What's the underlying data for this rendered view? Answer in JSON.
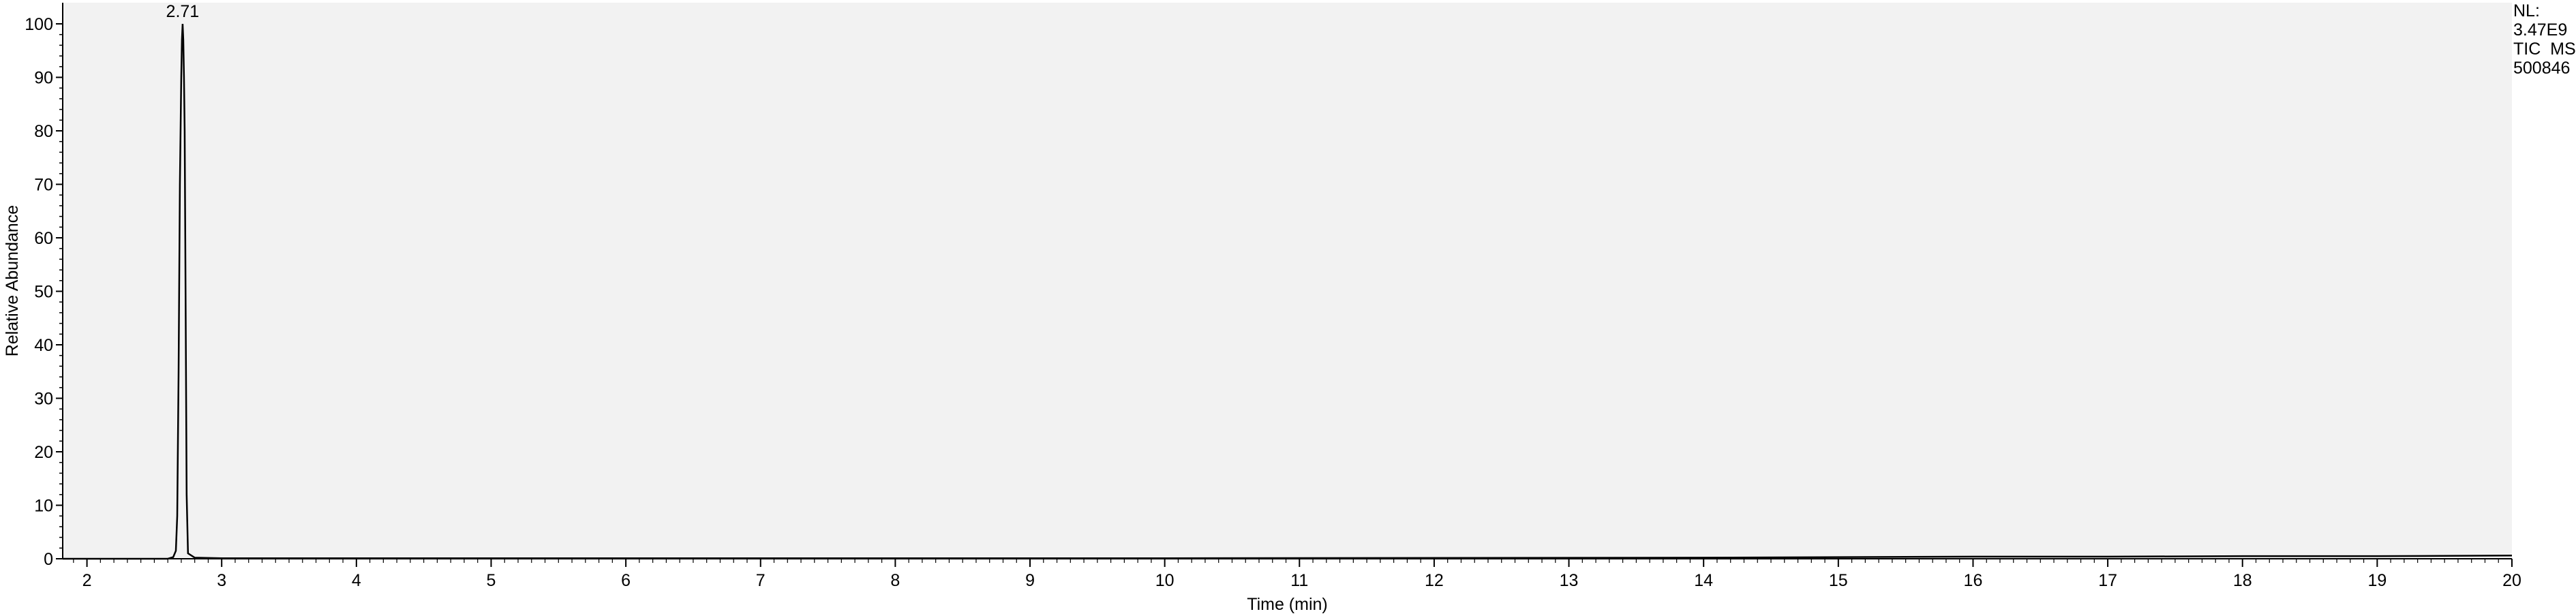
{
  "chart_data": {
    "type": "line",
    "title": "",
    "xlabel": "Time (min)",
    "ylabel": "Relative Abundance",
    "xlim": [
      1.82,
      20.0
    ],
    "ylim": [
      0,
      100
    ],
    "x_ticks": [
      2,
      3,
      4,
      5,
      6,
      7,
      8,
      9,
      10,
      11,
      12,
      13,
      14,
      15,
      16,
      17,
      18,
      19,
      20
    ],
    "y_ticks": [
      0,
      10,
      20,
      30,
      40,
      50,
      60,
      70,
      80,
      90,
      100
    ],
    "grid": false,
    "plot_background": "#f2f2f2",
    "line_color": "#000000",
    "series": [
      {
        "x": [
          1.82,
          2.6,
          2.64,
          2.66,
          2.67,
          2.68,
          2.69,
          2.7,
          2.705,
          2.71,
          2.715,
          2.72,
          2.725,
          2.73,
          2.74,
          2.75,
          2.8,
          3.0,
          5.0,
          10.0,
          14.0,
          15.0,
          16.0,
          17.0,
          18.0,
          19.0,
          20.0
        ],
        "y": [
          0,
          0,
          0.3,
          1.5,
          8,
          35,
          70,
          90,
          97,
          100,
          97,
          90,
          80,
          60,
          12,
          1,
          0.2,
          0.1,
          0.1,
          0.1,
          0.2,
          0.3,
          0.4,
          0.4,
          0.5,
          0.5,
          0.6
        ]
      }
    ],
    "annotations": [
      {
        "text": "2.71",
        "x": 2.71,
        "y": 100
      }
    ],
    "info_box": {
      "nl_label": "NL:",
      "nl_value": "3.47E9",
      "scan_type": "TIC  MS",
      "sample": "500846"
    }
  }
}
